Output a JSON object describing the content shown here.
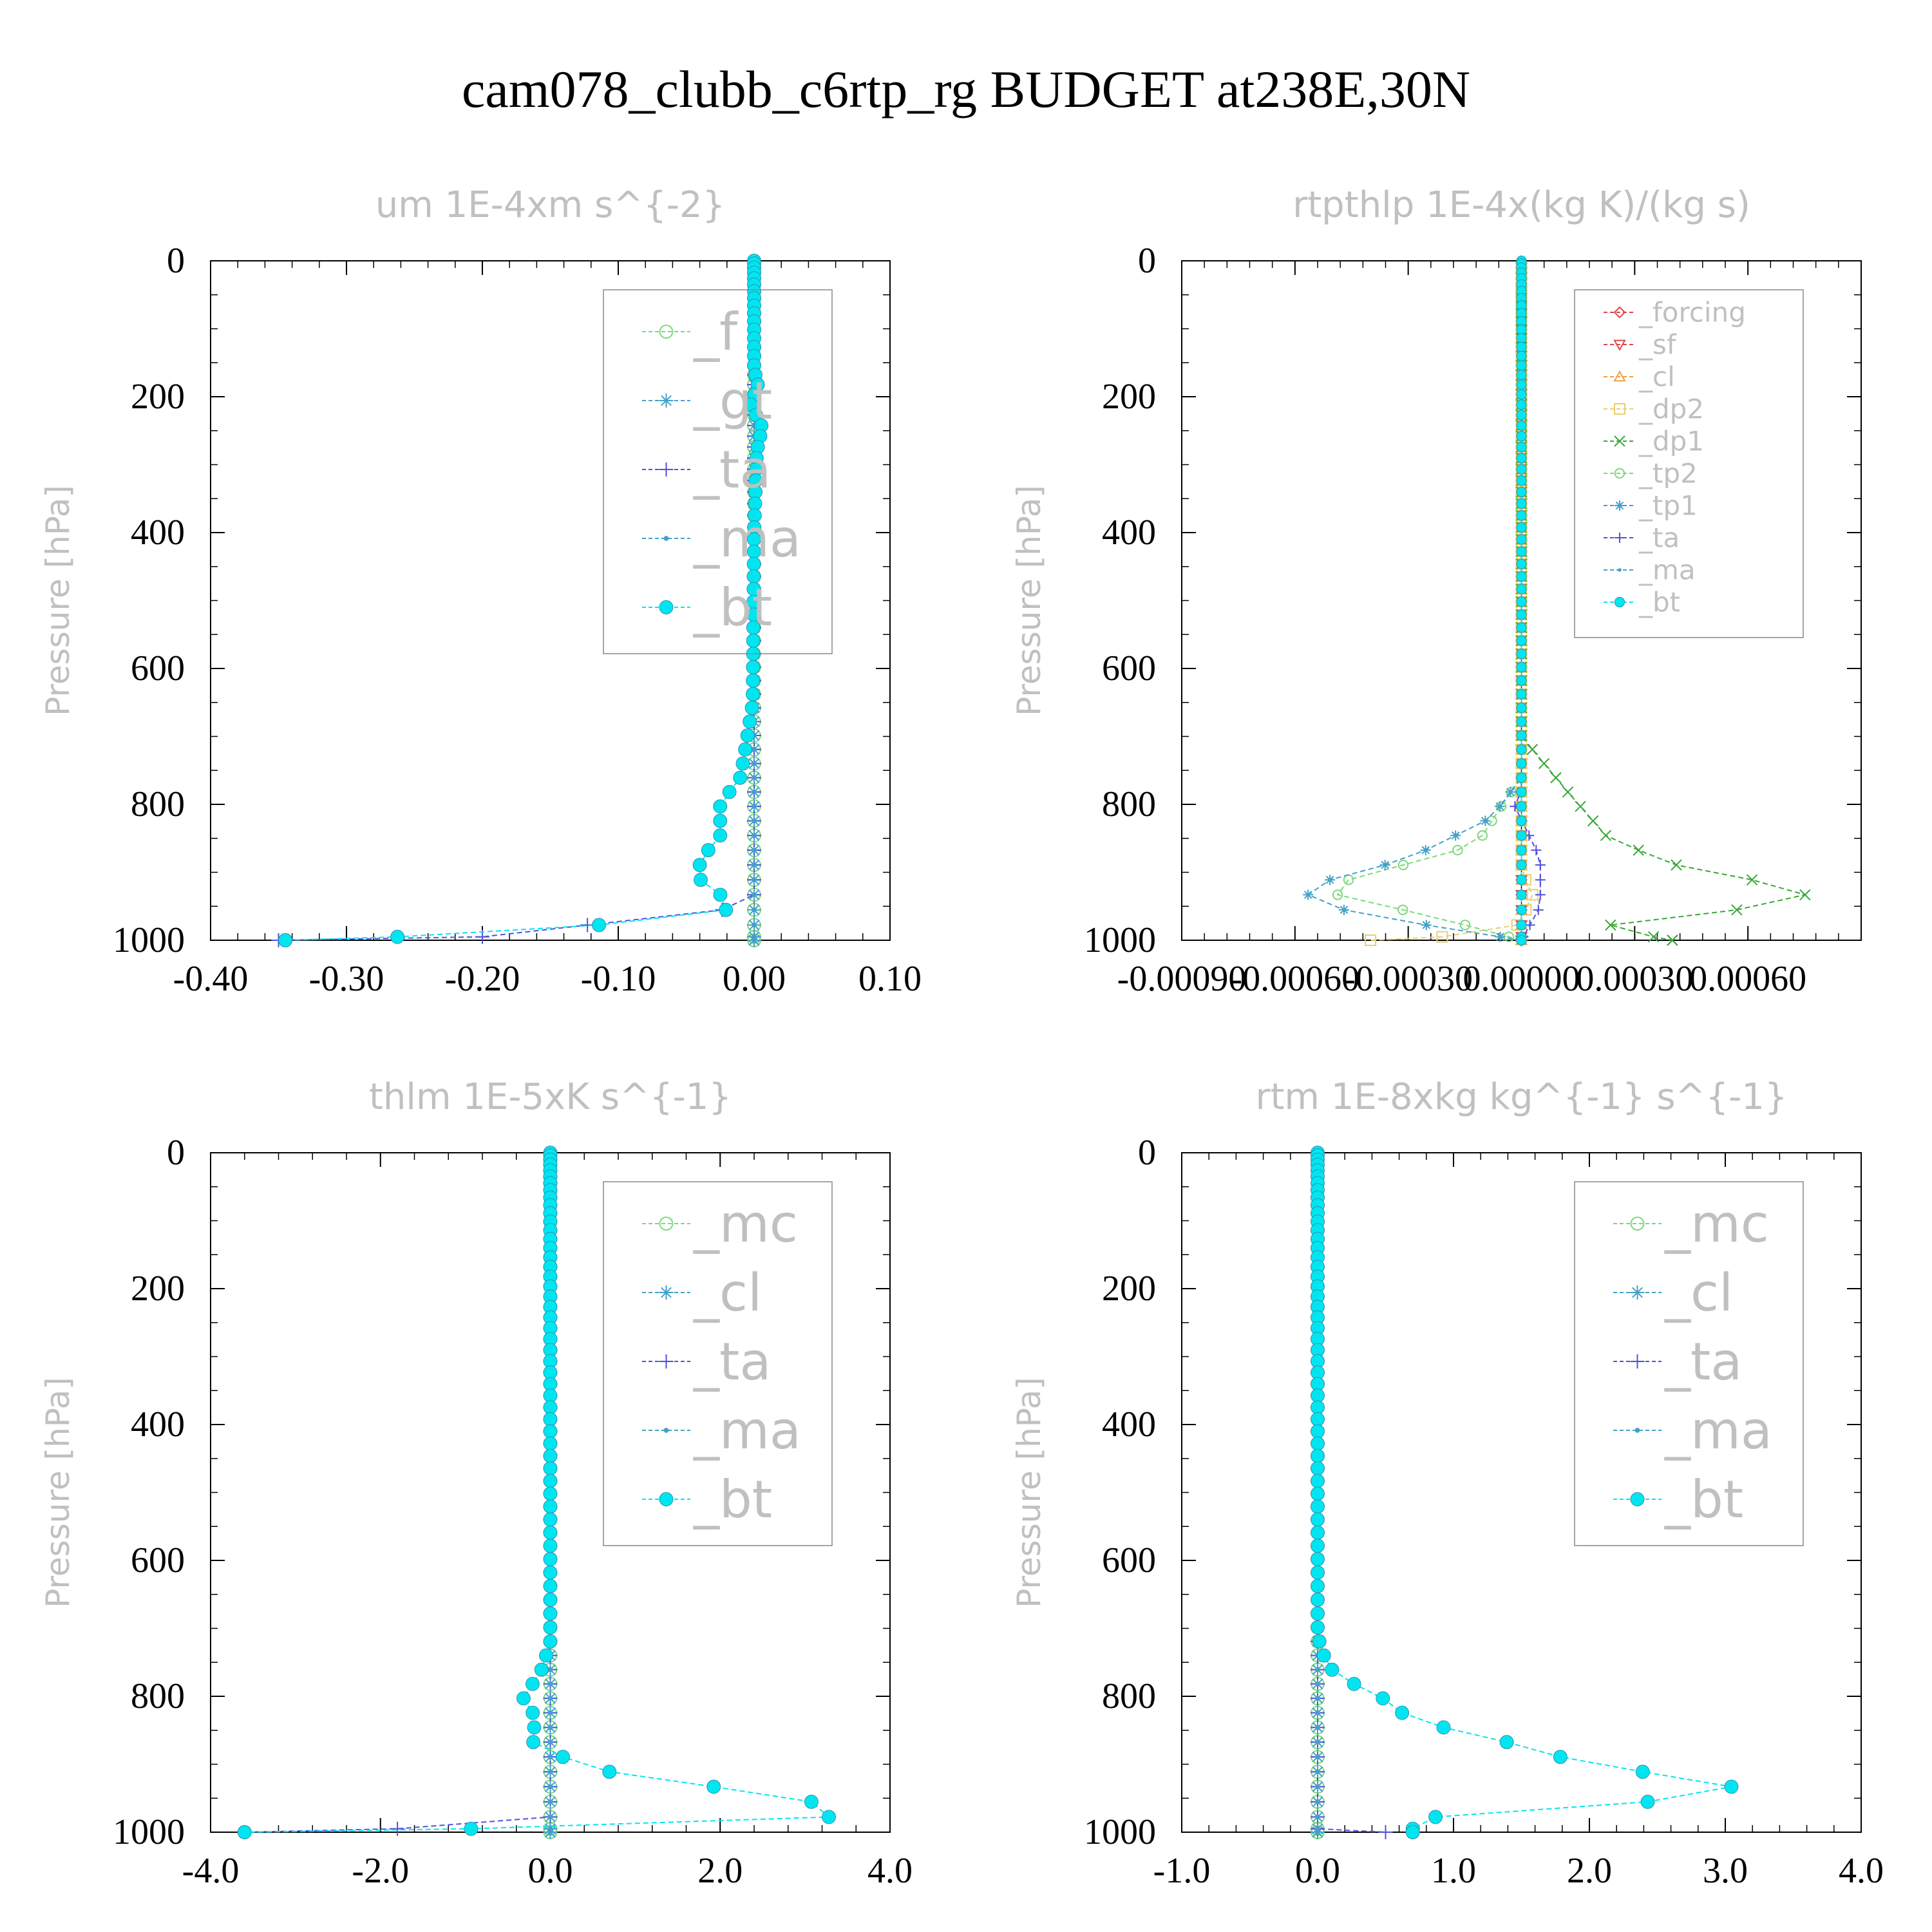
{
  "figure_title": "cam078_clubb_c6rtp_rg  BUDGET at238E,30N",
  "colors": {
    "green": "#7dd87d",
    "cyan": "#00e6f0",
    "teal": "#44a0c8",
    "blue": "#5050e0",
    "red": "#e04848",
    "orange": "#f0a040",
    "yellow": "#e8d070",
    "dkgreen": "#38a838",
    "purple": "#8040a0",
    "label_grey": "#c0c0c0"
  },
  "chart_data": [
    {
      "type": "line",
      "title": "um  1E-4xm s^{-2}",
      "ylabel": "Pressure [hPa]",
      "xlim": [
        -0.4,
        0.1
      ],
      "ylim": [
        1000,
        0
      ],
      "xticks": [
        "-0.40",
        "-0.30",
        "-0.20",
        "-0.10",
        "0.00",
        "0.10"
      ],
      "xtick_values": [
        -0.4,
        -0.3,
        -0.2,
        -0.1,
        0.0,
        0.1
      ],
      "yticks": [
        "0",
        "200",
        "400",
        "600",
        "800",
        "1000"
      ],
      "legend": {
        "position": "top-right",
        "size": "large"
      },
      "series": [
        {
          "name": "_f",
          "color": "green",
          "marker": "circle-open",
          "profile": {
            "pts": [
              [
                0,
                0
              ],
              [
                1000,
                0
              ]
            ]
          }
        },
        {
          "name": "_gt",
          "color": "teal",
          "marker": "asterisk",
          "profile": {
            "pts": [
              [
                0,
                0
              ],
              [
                1000,
                0
              ]
            ]
          }
        },
        {
          "name": "_ta",
          "color": "blue",
          "marker": "plus",
          "profile": {
            "pts": [
              [
                0,
                0
              ],
              [
                950,
                0
              ],
              [
                995,
                -0.2
              ],
              [
                1000,
                -0.35
              ]
            ]
          }
        },
        {
          "name": "_ma",
          "color": "teal",
          "marker": "dot",
          "profile": {
            "pts": [
              [
                0,
                0
              ],
              [
                950,
                0
              ],
              [
                1000,
                0
              ]
            ]
          }
        },
        {
          "name": "_bt",
          "color": "cyan",
          "marker": "filled",
          "profile": {
            "pts": [
              [
                0,
                0
              ],
              [
                160,
                0
              ],
              [
                185,
                0.003
              ],
              [
                210,
                -0.003
              ],
              [
                245,
                0.006
              ],
              [
                280,
                0.002
              ],
              [
                400,
                0.0
              ],
              [
                650,
                -0.001
              ],
              [
                700,
                -0.005
              ],
              [
                760,
                -0.01
              ],
              [
                800,
                -0.025
              ],
              [
                850,
                -0.025
              ],
              [
                880,
                -0.04
              ],
              [
                910,
                -0.04
              ],
              [
                930,
                -0.028
              ],
              [
                950,
                -0.008
              ],
              [
                960,
                -0.032
              ],
              [
                970,
                -0.08
              ],
              [
                980,
                -0.125
              ],
              [
                990,
                -0.18
              ],
              [
                1000,
                -0.345
              ]
            ]
          }
        }
      ]
    },
    {
      "type": "line",
      "title": "rtpthlp  1E-4x(kg K)/(kg s)",
      "ylabel": "Pressure [hPa]",
      "xlim": [
        -0.0009,
        0.0009
      ],
      "ylim": [
        1000,
        0
      ],
      "xticks": [
        "-0.00090",
        "-0.00060",
        "-0.00030",
        "0.00000",
        "0.00030",
        "0.00060"
      ],
      "xtick_values": [
        -0.0009,
        -0.0006,
        -0.0003,
        0.0,
        0.0003,
        0.0006
      ],
      "yticks": [
        "0",
        "200",
        "400",
        "600",
        "800",
        "1000"
      ],
      "legend": {
        "position": "top-right",
        "size": "small"
      },
      "series": [
        {
          "name": "_forcing",
          "color": "red",
          "marker": "diamond",
          "profile": {
            "pts": [
              [
                0,
                0
              ],
              [
                1000,
                0
              ]
            ]
          }
        },
        {
          "name": "_sf",
          "color": "red",
          "marker": "triangle-down",
          "profile": {
            "pts": [
              [
                0,
                0
              ],
              [
                1000,
                0
              ]
            ]
          }
        },
        {
          "name": "_cl",
          "color": "orange",
          "marker": "triangle-up",
          "profile": {
            "pts": [
              [
                0,
                0
              ],
              [
                1000,
                0
              ]
            ]
          }
        },
        {
          "name": "_dp2",
          "color": "yellow",
          "marker": "square",
          "profile": {
            "pts": [
              [
                0,
                0
              ],
              [
                910,
                0
              ],
              [
                920,
                0.0001
              ],
              [
                930,
                2e-05
              ],
              [
                940,
                5e-05
              ],
              [
                960,
                0.0
              ],
              [
                990,
                -2e-05
              ],
              [
                1000,
                -0.0004
              ]
            ]
          }
        },
        {
          "name": "_dp1",
          "color": "dkgreen",
          "marker": "x",
          "profile": {
            "pts": [
              [
                0,
                0
              ],
              [
                700,
                0
              ],
              [
                720,
                3e-05
              ],
              [
                780,
                0.00012
              ],
              [
                850,
                0.00023
              ],
              [
                900,
                0.00046
              ],
              [
                925,
                0.0008
              ],
              [
                950,
                0.00065
              ],
              [
                980,
                0.0002
              ],
              [
                1000,
                0.0004
              ]
            ]
          }
        },
        {
          "name": "_tp2",
          "color": "green",
          "marker": "circle-open",
          "profile": {
            "pts": [
              [
                0,
                0
              ],
              [
                760,
                0
              ],
              [
                800,
                -5e-05
              ],
              [
                860,
                -0.00012
              ],
              [
                925,
                -0.00055
              ],
              [
                970,
                -0.0002
              ],
              [
                1000,
                0.0
              ]
            ]
          }
        },
        {
          "name": "_tp1",
          "color": "teal",
          "marker": "asterisk",
          "profile": {
            "pts": [
              [
                0,
                0
              ],
              [
                760,
                0
              ],
              [
                820,
                -8e-05
              ],
              [
                880,
                -0.0003
              ],
              [
                925,
                -0.0006
              ],
              [
                960,
                -0.00045
              ],
              [
                1000,
                0.0
              ]
            ]
          }
        },
        {
          "name": "_ta",
          "color": "blue",
          "marker": "plus",
          "profile": {
            "pts": [
              [
                0,
                0
              ],
              [
                780,
                0
              ],
              [
                800,
                -2e-05
              ],
              [
                880,
                5e-05
              ],
              [
                930,
                5e-05
              ],
              [
                950,
                5e-05
              ],
              [
                1000,
                0.0
              ]
            ]
          }
        },
        {
          "name": "_ma",
          "color": "teal",
          "marker": "dot",
          "profile": {
            "pts": [
              [
                0,
                0
              ],
              [
                1000,
                0
              ]
            ]
          }
        },
        {
          "name": "_bt",
          "color": "cyan",
          "marker": "filled",
          "profile": {
            "pts": [
              [
                0,
                0
              ],
              [
                1000,
                0
              ]
            ]
          }
        }
      ]
    },
    {
      "type": "line",
      "title": "thlm  1E-5xK s^{-1}",
      "ylabel": "Pressure [hPa]",
      "xlim": [
        -4.0,
        4.0
      ],
      "ylim": [
        1000,
        0
      ],
      "xticks": [
        "-4.0",
        "-2.0",
        "0.0",
        "2.0",
        "4.0"
      ],
      "xtick_values": [
        -4,
        -2,
        0,
        2,
        4
      ],
      "yticks": [
        "0",
        "200",
        "400",
        "600",
        "800",
        "1000"
      ],
      "legend": {
        "position": "top-right",
        "size": "large"
      },
      "series": [
        {
          "name": "_mc",
          "color": "green",
          "marker": "circle-open",
          "profile": {
            "pts": [
              [
                0,
                0
              ],
              [
                1000,
                0
              ]
            ]
          }
        },
        {
          "name": "_cl",
          "color": "teal",
          "marker": "asterisk",
          "profile": {
            "pts": [
              [
                0,
                0
              ],
              [
                1000,
                0
              ]
            ]
          }
        },
        {
          "name": "_ta",
          "color": "blue",
          "marker": "plus",
          "profile": {
            "pts": [
              [
                0,
                0
              ],
              [
                990,
                0
              ],
              [
                1000,
                -3.6
              ]
            ]
          }
        },
        {
          "name": "_ma",
          "color": "teal",
          "marker": "dot",
          "profile": {
            "pts": [
              [
                0,
                0
              ],
              [
                1000,
                0
              ]
            ]
          }
        },
        {
          "name": "_bt",
          "color": "cyan",
          "marker": "filled",
          "profile": {
            "pts": [
              [
                0,
                0
              ],
              [
                720,
                0
              ],
              [
                760,
                -0.1
              ],
              [
                790,
                -0.25
              ],
              [
                810,
                -0.35
              ],
              [
                830,
                -0.15
              ],
              [
                850,
                -0.2
              ],
              [
                870,
                -0.2
              ],
              [
                885,
                0.05
              ],
              [
                900,
                0.4
              ],
              [
                915,
                0.8
              ],
              [
                925,
                1.6
              ],
              [
                940,
                2.2
              ],
              [
                950,
                2.5
              ],
              [
                962,
                3.8
              ],
              [
                975,
                3.4
              ],
              [
                988,
                2.8
              ],
              [
                1000,
                -3.6
              ]
            ]
          }
        }
      ]
    },
    {
      "type": "line",
      "title": "rtm  1E-8xkg kg^{-1} s^{-1}",
      "ylabel": "Pressure [hPa]",
      "xlim": [
        -1.0,
        4.0
      ],
      "ylim": [
        1000,
        0
      ],
      "xticks": [
        "-1.0",
        "0.0",
        "1.0",
        "2.0",
        "3.0",
        "4.0"
      ],
      "xtick_values": [
        -1,
        0,
        1,
        2,
        3,
        4
      ],
      "yticks": [
        "0",
        "200",
        "400",
        "600",
        "800",
        "1000"
      ],
      "legend": {
        "position": "top-right",
        "size": "large"
      },
      "series": [
        {
          "name": "_mc",
          "color": "green",
          "marker": "circle-open",
          "profile": {
            "pts": [
              [
                0,
                0
              ],
              [
                1000,
                0
              ]
            ]
          }
        },
        {
          "name": "_cl",
          "color": "teal",
          "marker": "asterisk",
          "profile": {
            "pts": [
              [
                0,
                0
              ],
              [
                1000,
                0
              ]
            ]
          }
        },
        {
          "name": "_ta",
          "color": "blue",
          "marker": "plus",
          "profile": {
            "pts": [
              [
                0,
                0
              ],
              [
                995,
                0
              ],
              [
                1000,
                0.5
              ]
            ]
          }
        },
        {
          "name": "_ma",
          "color": "teal",
          "marker": "dot",
          "profile": {
            "pts": [
              [
                0,
                0
              ],
              [
                1000,
                0
              ]
            ]
          }
        },
        {
          "name": "_bt",
          "color": "cyan",
          "marker": "filled",
          "profile": {
            "pts": [
              [
                0,
                0
              ],
              [
                700,
                0
              ],
              [
                730,
                0.02
              ],
              [
                760,
                0.1
              ],
              [
                780,
                0.25
              ],
              [
                810,
                0.55
              ],
              [
                830,
                0.65
              ],
              [
                850,
                1.0
              ],
              [
                870,
                1.45
              ],
              [
                890,
                1.8
              ],
              [
                905,
                2.25
              ],
              [
                920,
                2.6
              ],
              [
                930,
                3.2
              ],
              [
                940,
                2.7
              ],
              [
                950,
                2.8
              ],
              [
                960,
                2.1
              ],
              [
                970,
                1.2
              ],
              [
                978,
                0.85
              ],
              [
                986,
                0.75
              ],
              [
                992,
                0.7
              ],
              [
                1000,
                0.7
              ]
            ]
          }
        }
      ]
    }
  ]
}
